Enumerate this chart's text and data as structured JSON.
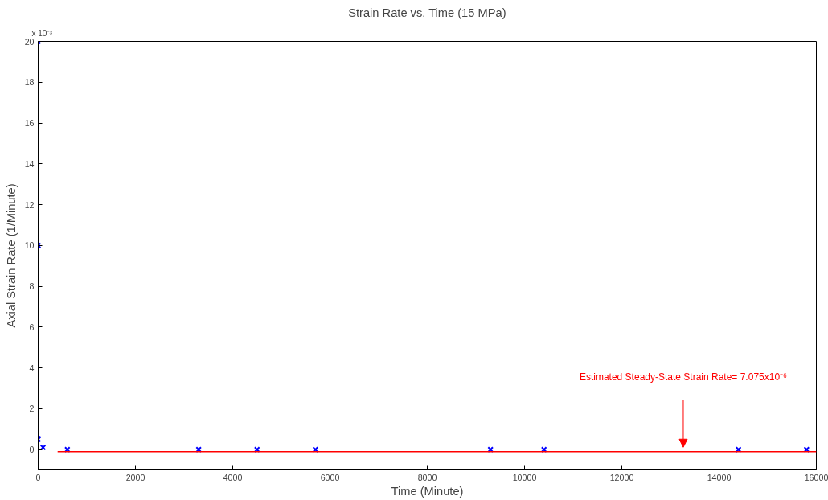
{
  "chart_data": {
    "type": "scatter",
    "title": "Strain Rate vs. Time (15 MPa)",
    "xlabel": "Time (Minute)",
    "ylabel": "Axial Strain Rate (1/Minute)",
    "x": [
      0,
      0,
      0,
      100,
      600,
      3300,
      4500,
      5700,
      9300,
      10400,
      14400,
      15800
    ],
    "series": [
      {
        "color": "#0000ff",
        "values": [
          20,
          10,
          0.5,
          0.1,
          0,
          0,
          0,
          0,
          0,
          0,
          0,
          0
        ]
      },
      {
        "type": "line",
        "color": "#ff0000",
        "marker": "none",
        "x": [
          400,
          16000
        ],
        "values": [
          -0.1,
          -0.1
        ]
      }
    ],
    "marker": "cross",
    "grid": false,
    "xlim": [
      0,
      16000
    ],
    "xticks": [
      0,
      2000,
      4000,
      6000,
      8000,
      10000,
      12000,
      14000,
      16000
    ],
    "ylim": [
      -1,
      20
    ],
    "yticks": [
      0,
      2,
      4,
      6,
      8,
      10,
      12,
      14,
      16,
      18,
      20
    ],
    "annotations": [
      "x 10⁻³",
      "Estimated Steady-State Strain Rate= 7.075x10⁻⁶"
    ]
  }
}
